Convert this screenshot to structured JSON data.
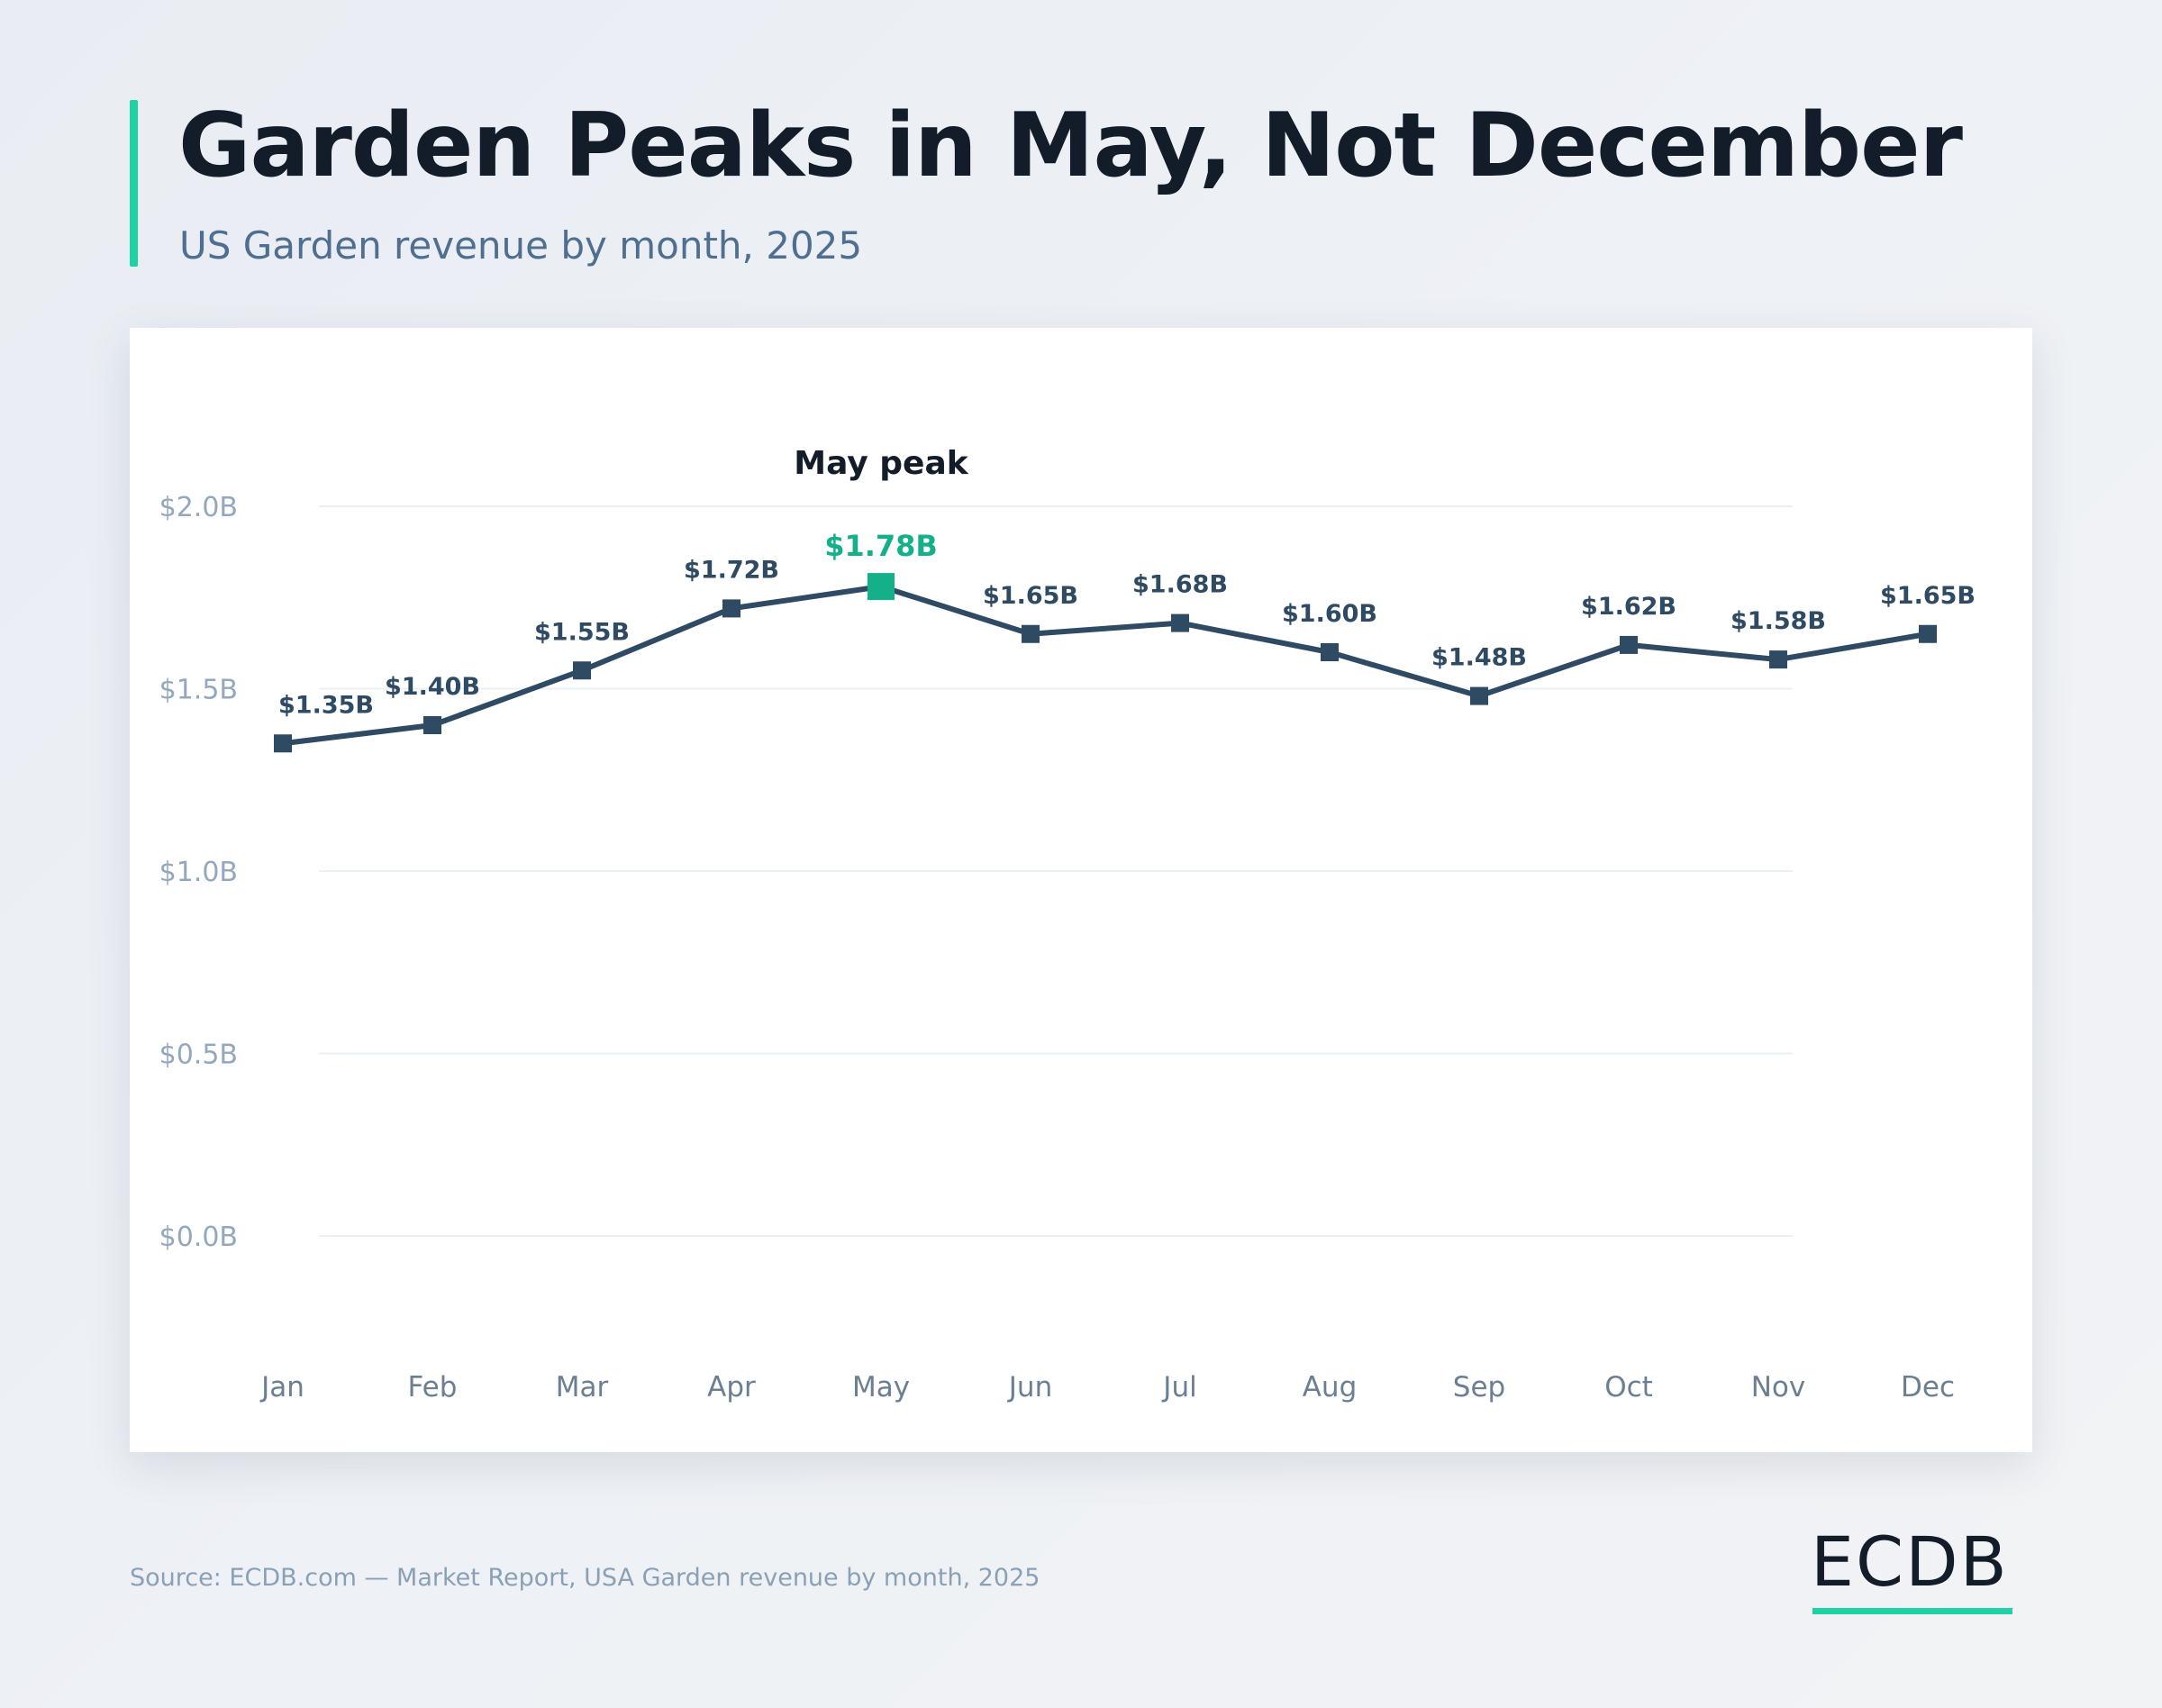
{
  "header": {
    "title": "Garden Peaks in May, Not December",
    "subtitle": "US Garden revenue by month, 2025"
  },
  "footer": {
    "source": "Source: ECDB.com — Market Report, USA Garden revenue by month, 2025",
    "logo": "ECDB"
  },
  "colors": {
    "line": "#2f4a63",
    "highlight": "#13b08a",
    "accent": "#1fd1a5",
    "grid": "#eceff3",
    "tick": "#93a8bd",
    "category": "#6b7f93",
    "label": "#2f4a63",
    "annotation": "#131c29"
  },
  "chart_data": {
    "type": "line",
    "title": "Garden Peaks in May, Not December",
    "subtitle": "US Garden revenue by month, 2025",
    "xlabel": "",
    "ylabel": "",
    "categories": [
      "Jan",
      "Feb",
      "Mar",
      "Apr",
      "May",
      "Jun",
      "Jul",
      "Aug",
      "Sep",
      "Oct",
      "Nov",
      "Dec"
    ],
    "values": [
      1.35,
      1.4,
      1.55,
      1.72,
      1.78,
      1.65,
      1.68,
      1.6,
      1.48,
      1.62,
      1.58,
      1.65
    ],
    "value_labels": [
      "$1.35B",
      "$1.40B",
      "$1.55B",
      "$1.72B",
      "$1.78B",
      "$1.65B",
      "$1.68B",
      "$1.60B",
      "$1.48B",
      "$1.62B",
      "$1.58B",
      "$1.65B"
    ],
    "ylim": [
      0,
      2.0
    ],
    "yticks": [
      0,
      0.5,
      1.0,
      1.5,
      2.0
    ],
    "ytick_labels": [
      "$0.0B",
      "$0.5B",
      "$1.0B",
      "$1.5B",
      "$2.0B"
    ],
    "grid": true,
    "highlight_index": 4,
    "annotation": "May peak"
  }
}
